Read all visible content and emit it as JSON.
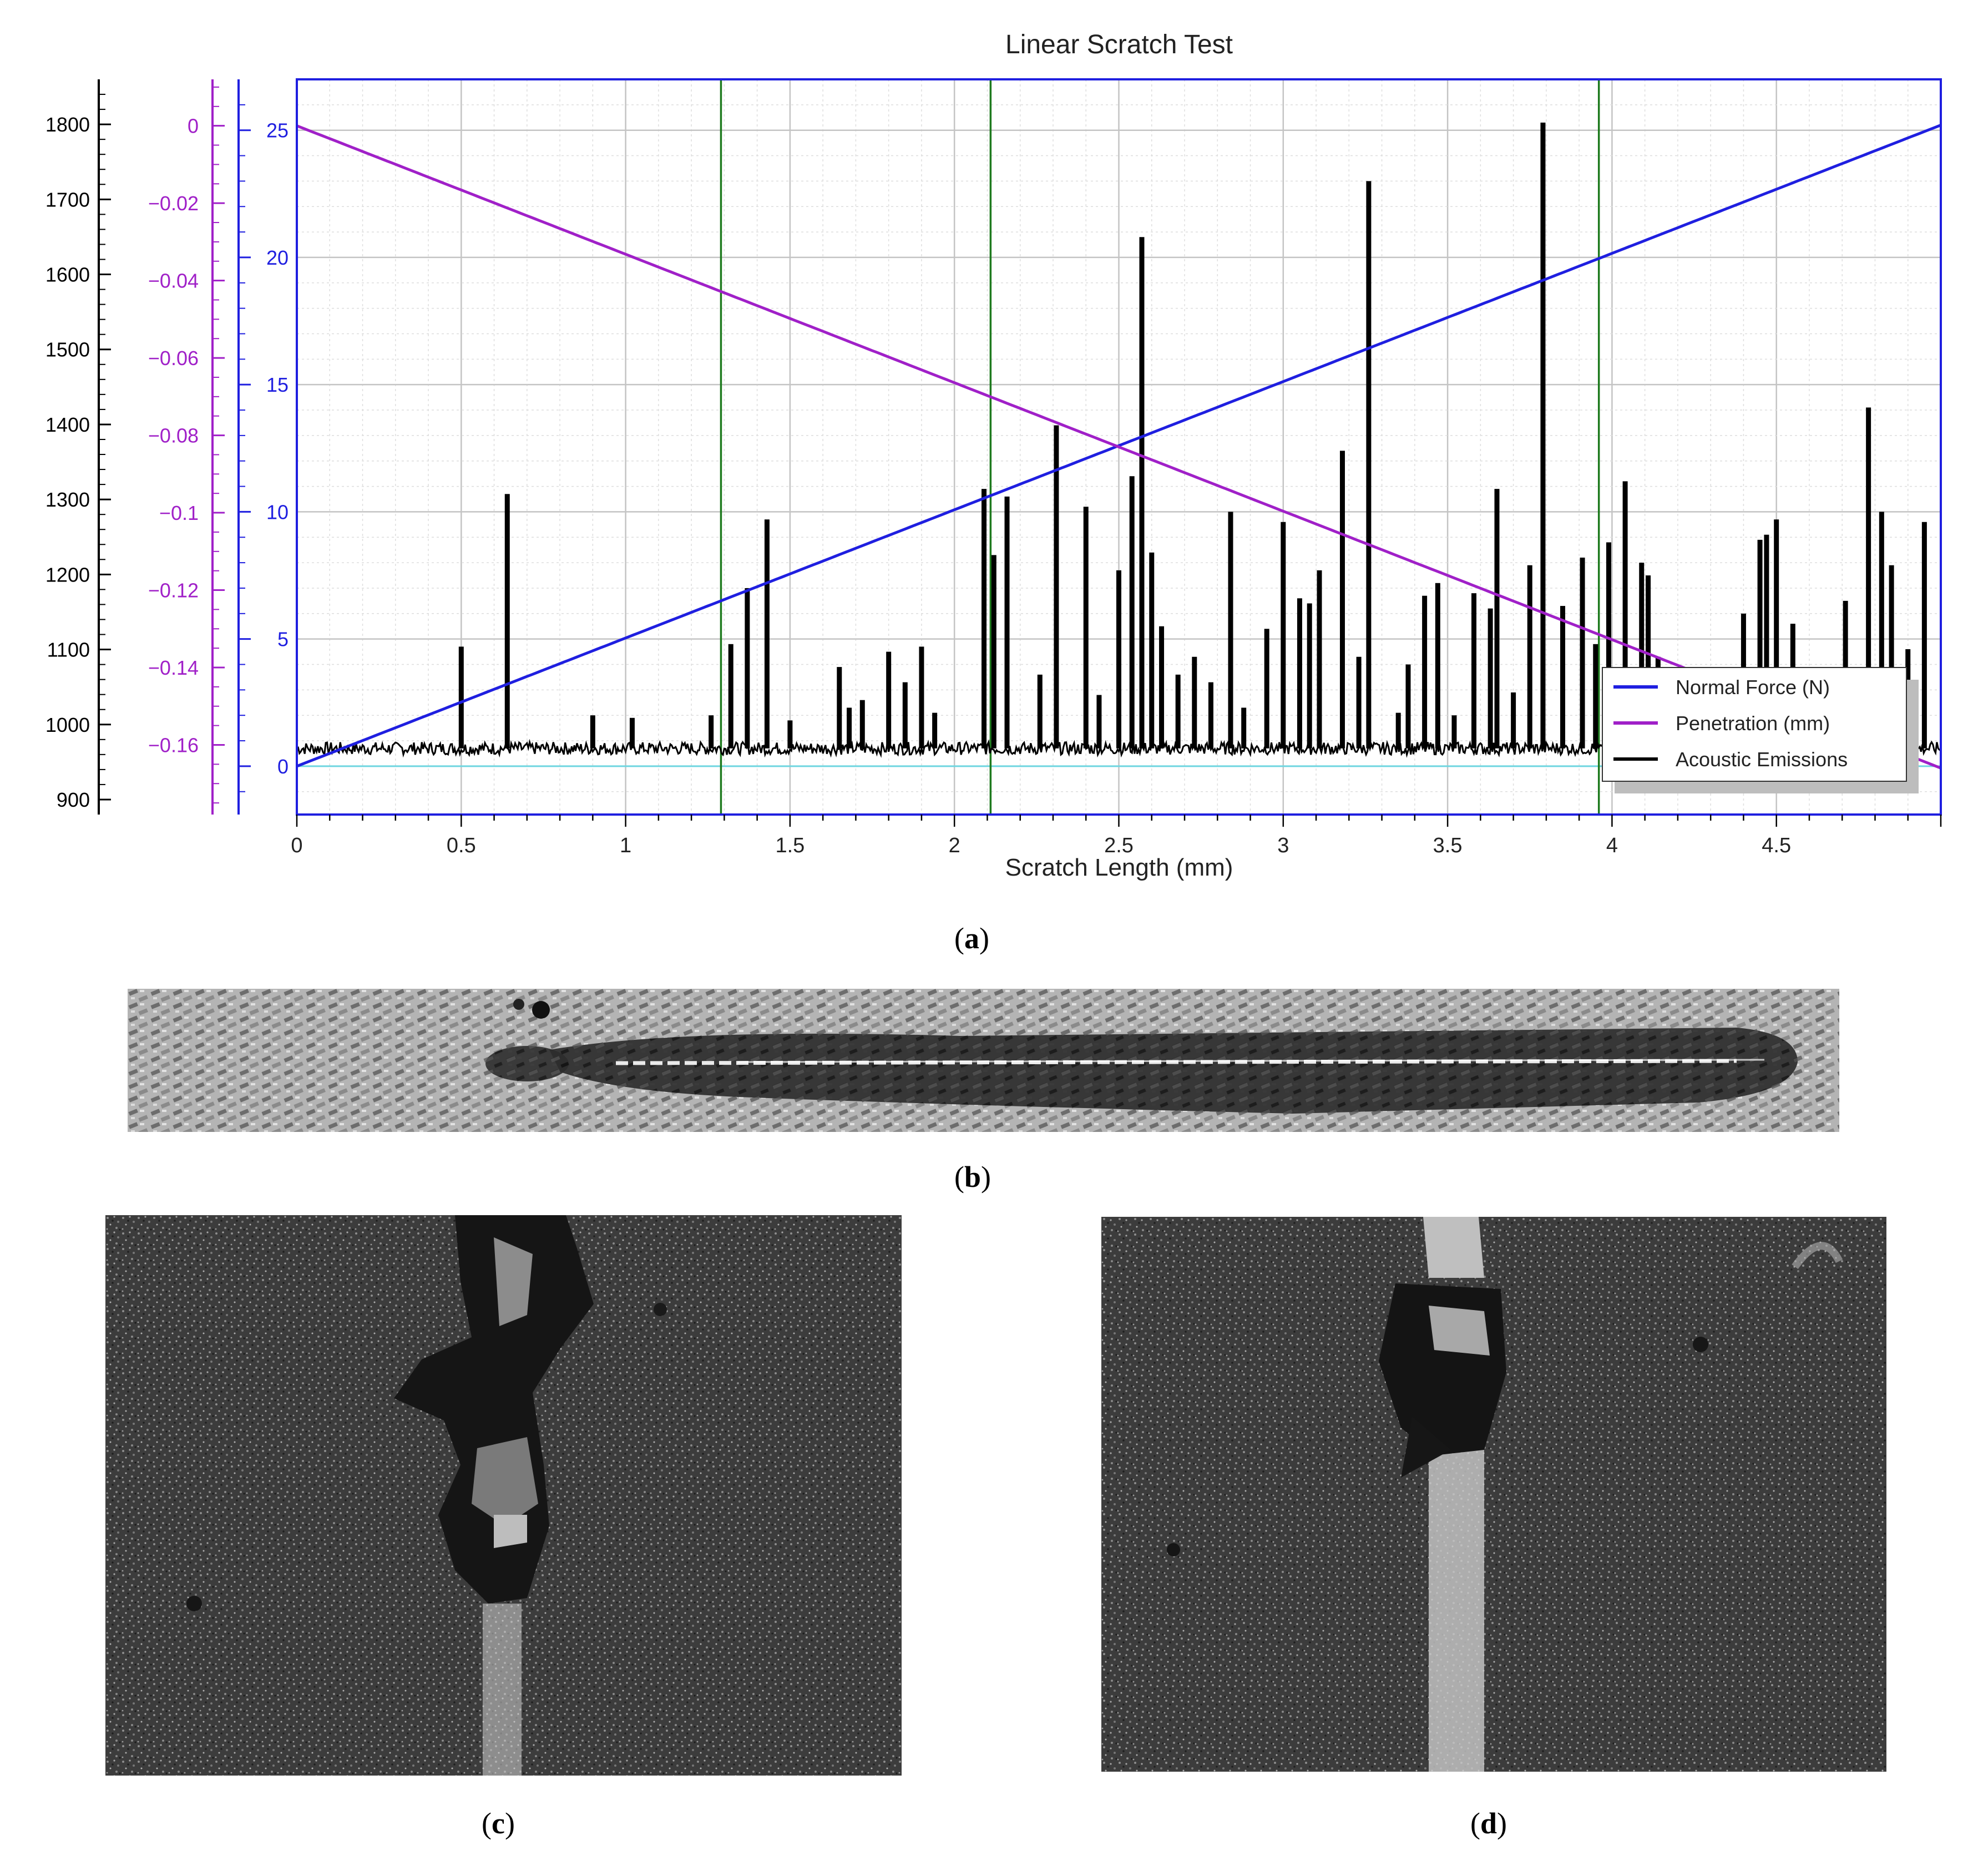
{
  "chart_data": {
    "type": "line",
    "title": "Linear Scratch Test",
    "xlabel": "Scratch Length (mm)",
    "xlim": [
      0,
      5
    ],
    "xticks": [
      "0",
      "0.5",
      "1",
      "1.5",
      "2",
      "2.5",
      "3",
      "3.5",
      "4",
      "4.5"
    ],
    "grid": true,
    "legend_position": "bottom-right",
    "axes": {
      "acoustic": {
        "color": "#000000",
        "range": [
          880,
          1860
        ],
        "ticks": [
          "900",
          "1000",
          "1100",
          "1200",
          "1300",
          "1400",
          "1500",
          "1600",
          "1700",
          "1800"
        ]
      },
      "penetration": {
        "color": "#a020c8",
        "range": [
          -0.178,
          0.012
        ],
        "ticks": [
          "0",
          "-0.02",
          "-0.04",
          "-0.06",
          "-0.08",
          "-0.1",
          "-0.12",
          "-0.14",
          "-0.16"
        ]
      },
      "force": {
        "color": "#1f1fe0",
        "range": [
          -1.9,
          27
        ],
        "ticks": [
          "0",
          "5",
          "10",
          "15",
          "20",
          "25"
        ]
      }
    },
    "vertical_markers_mm": [
      1.29,
      2.11,
      3.96
    ],
    "series": [
      {
        "name": "Normal Force (N)",
        "color": "#1f1fe0",
        "axis": "force",
        "x": [
          0,
          5
        ],
        "y": [
          0,
          25.2
        ]
      },
      {
        "name": "Penetration (mm)",
        "color": "#a020c8",
        "axis": "penetration",
        "x": [
          0,
          5
        ],
        "y": [
          0.0,
          -0.166
        ]
      },
      {
        "name": "Acoustic Emissions",
        "color": "#000000",
        "axis": "force",
        "baseline": 0.7,
        "peaks_x": [
          0.5,
          0.64,
          0.9,
          1.02,
          1.26,
          1.32,
          1.37,
          1.43,
          1.5,
          1.65,
          1.68,
          1.72,
          1.8,
          1.85,
          1.9,
          1.94,
          2.09,
          2.12,
          2.16,
          2.26,
          2.31,
          2.4,
          2.44,
          2.5,
          2.54,
          2.57,
          2.6,
          2.63,
          2.68,
          2.73,
          2.78,
          2.84,
          2.88,
          2.95,
          3.0,
          3.05,
          3.08,
          3.11,
          3.18,
          3.23,
          3.26,
          3.35,
          3.38,
          3.43,
          3.47,
          3.52,
          3.58,
          3.63,
          3.65,
          3.7,
          3.75,
          3.79,
          3.85,
          3.91,
          3.95,
          3.99,
          4.04,
          4.09,
          4.11,
          4.14,
          4.4,
          4.45,
          4.47,
          4.5,
          4.55,
          4.71,
          4.78,
          4.82,
          4.85,
          4.9,
          4.95
        ],
        "peaks_y": [
          4.7,
          10.7,
          2.0,
          1.9,
          2.0,
          4.8,
          7.0,
          9.7,
          1.8,
          3.9,
          2.3,
          2.6,
          4.5,
          3.3,
          4.7,
          2.1,
          10.9,
          8.3,
          10.6,
          3.6,
          13.4,
          10.2,
          2.8,
          7.7,
          11.4,
          20.8,
          8.4,
          5.5,
          3.6,
          4.3,
          3.3,
          10.0,
          2.3,
          5.4,
          9.6,
          6.6,
          6.4,
          7.7,
          12.4,
          4.3,
          23.0,
          2.1,
          4.0,
          6.7,
          7.2,
          2.0,
          6.8,
          6.2,
          10.9,
          2.9,
          7.9,
          25.3,
          6.3,
          8.2,
          4.8,
          8.8,
          11.2,
          8.0,
          7.5,
          4.3,
          6.0,
          8.9,
          9.1,
          9.7,
          5.6,
          6.5,
          14.1,
          10.0,
          7.9,
          4.6,
          9.6
        ]
      }
    ]
  },
  "captions": {
    "a": "a",
    "b": "b",
    "c": "c",
    "d": "d"
  }
}
